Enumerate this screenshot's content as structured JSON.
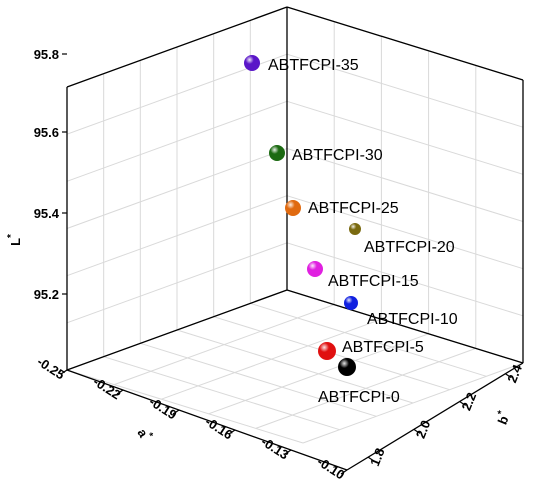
{
  "chart_data": {
    "type": "scatter",
    "subtype": "3d-scatter",
    "axes": {
      "z": {
        "label": "L",
        "label_sup": "*",
        "ticks": [
          "95.2",
          "95.4",
          "95.6",
          "95.8"
        ]
      },
      "a": {
        "label": "a",
        "label_sup": "*",
        "ticks": [
          "-0.25",
          "-0.22",
          "-0.19",
          "-0.16",
          "-0.13",
          "-0.10"
        ]
      },
      "b": {
        "label": "b",
        "label_sup": "*",
        "ticks": [
          "1.8",
          "2.0",
          "2.2",
          "2.4"
        ]
      }
    },
    "grid": true,
    "points": [
      {
        "label": "ABTFCPI-35",
        "L": 95.76,
        "a": null,
        "b": null,
        "color": "#5a16c8"
      },
      {
        "label": "ABTFCPI-30",
        "L": 95.54,
        "a": null,
        "b": null,
        "color": "#1c6a12"
      },
      {
        "label": "ABTFCPI-25",
        "L": 95.41,
        "a": null,
        "b": null,
        "color": "#e06a10"
      },
      {
        "label": "ABTFCPI-20",
        "L": 95.33,
        "a": null,
        "b": null,
        "color": "#7a6a10"
      },
      {
        "label": "ABTFCPI-15",
        "L": 95.24,
        "a": null,
        "b": null,
        "color": "#e020e0"
      },
      {
        "label": "ABTFCPI-10",
        "L": 95.14,
        "a": null,
        "b": null,
        "color": "#1020e0"
      },
      {
        "label": "ABTFCPI-5",
        "L": 95.02,
        "a": null,
        "b": null,
        "color": "#e01010"
      },
      {
        "label": "ABTFCPI-0",
        "L": 94.98,
        "a": null,
        "b": null,
        "color": "#000000"
      }
    ]
  }
}
